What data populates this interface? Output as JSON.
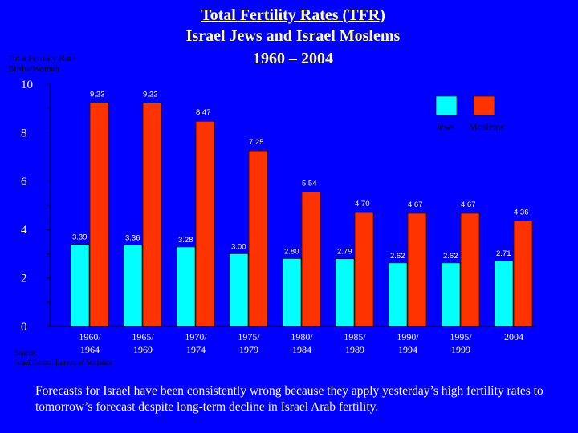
{
  "title": {
    "line1": "Total Fertility Rates (TFR)",
    "line2": "Israel Jews and  Israel Moslems",
    "line3": "1960 – 2004"
  },
  "y_axis": {
    "title": "Total Fertility Rate",
    "unit": "Births/Woman"
  },
  "source": {
    "label": "Source:",
    "name": "Israel Central Bureau of Statistics"
  },
  "footnote": "Forecasts for Israel have been consistently wrong because they apply yesterday’s high fertility rates to tomorrow’s forecast despite long-term decline in Israel Arab fertility.",
  "chart_data": {
    "type": "bar",
    "categories": [
      [
        "1960/",
        "1964"
      ],
      [
        "1965/",
        "1969"
      ],
      [
        "1970/",
        "1974"
      ],
      [
        "1975/",
        "1979"
      ],
      [
        "1980/",
        "1984"
      ],
      [
        "1985/",
        "1989"
      ],
      [
        "1990/",
        "1994"
      ],
      [
        "1995/",
        "1999"
      ],
      [
        "2004"
      ]
    ],
    "series": [
      {
        "name": "Jews",
        "color": "#00ffff",
        "values": [
          3.39,
          3.36,
          3.28,
          3.0,
          2.8,
          2.79,
          2.62,
          2.62,
          2.71
        ],
        "labels": [
          "3.39",
          "3.36",
          "3.28",
          "3.00",
          "2.80",
          "2.79",
          "2.62",
          "2.62",
          "2.71"
        ]
      },
      {
        "name": "Moslems",
        "color": "#ff3300",
        "values": [
          9.23,
          9.22,
          8.47,
          7.25,
          5.54,
          4.7,
          4.67,
          4.67,
          4.36
        ],
        "labels": [
          "9.23",
          "9.22",
          "8.47",
          "7.25",
          "5.54",
          "4.70",
          "4.67",
          "4.67",
          "4.36"
        ]
      }
    ],
    "yticks": [
      "0",
      "2",
      "4",
      "6",
      "8",
      "10"
    ],
    "ylim": [
      0,
      10
    ],
    "legend_position": "top-right",
    "grid": false
  }
}
